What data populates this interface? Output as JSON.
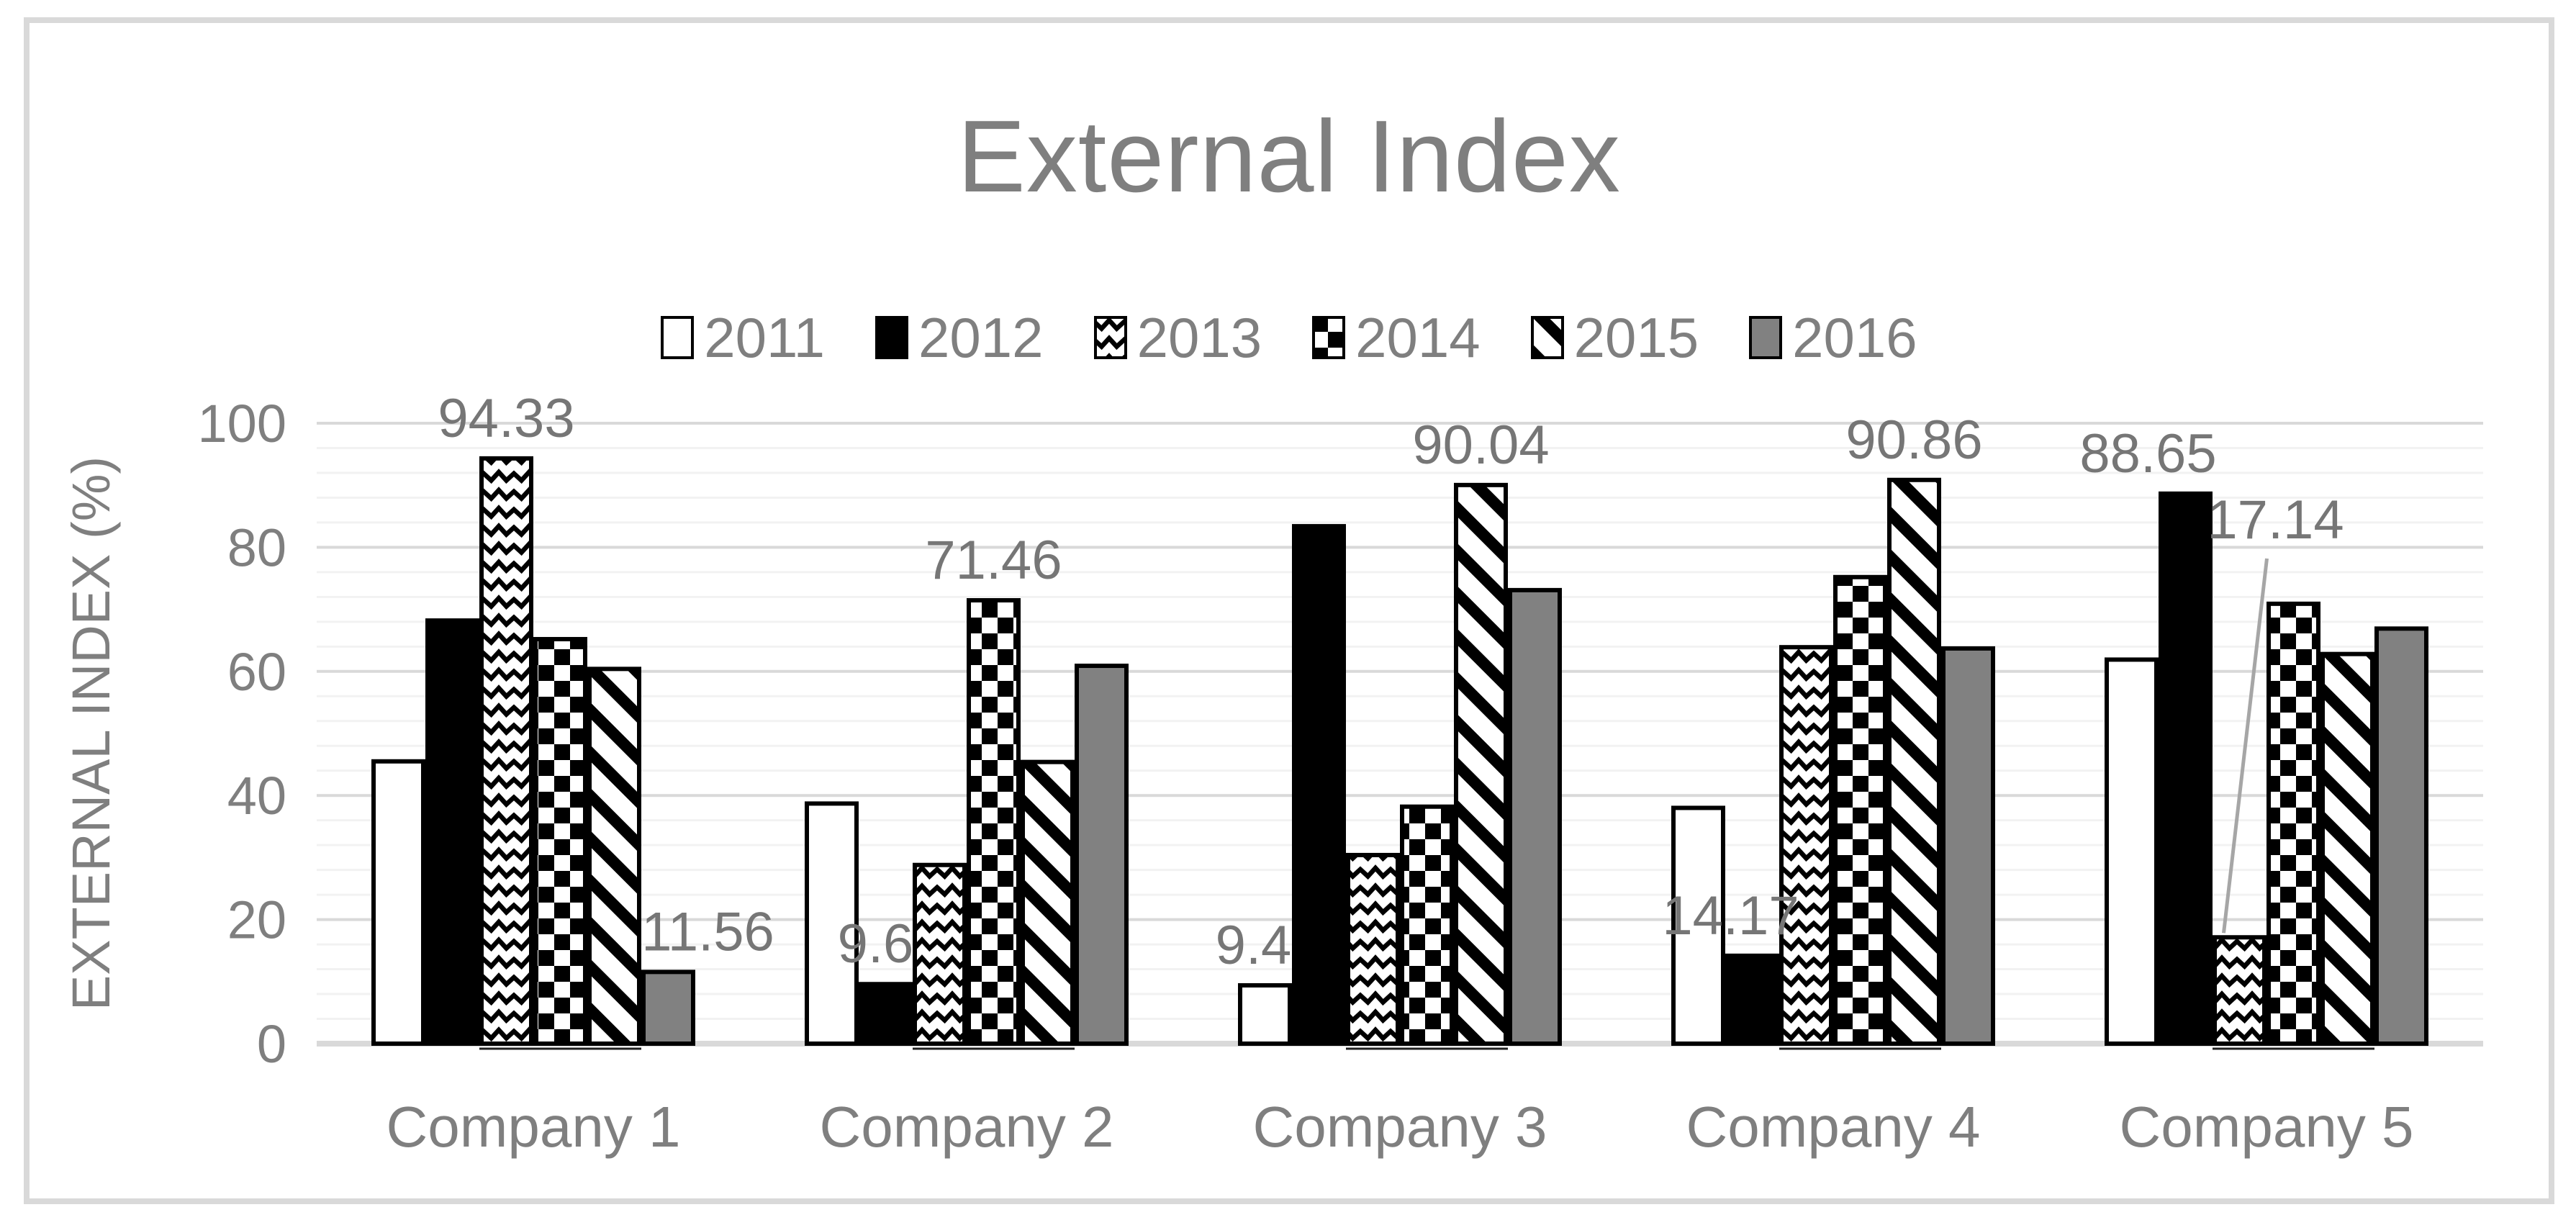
{
  "frame": {
    "border_color": "#d9d9d9"
  },
  "chart_data": {
    "type": "bar",
    "title": "External Index",
    "y_axis_title": "EXTERNAL INDEX (%)",
    "xlabel": "",
    "ylim": [
      0,
      100
    ],
    "yticks": [
      0,
      20,
      40,
      60,
      80,
      100
    ],
    "minor_gridline_step": 4,
    "grid": "on",
    "legend_position": "top",
    "categories": [
      "Company 1",
      "Company 2",
      "Company 3",
      "Company 4",
      "Company 5"
    ],
    "series": [
      {
        "name": "2011",
        "swatch": "white",
        "values": [
          45.5,
          38.7,
          9.4,
          38.0,
          61.9
        ]
      },
      {
        "name": "2012",
        "swatch": "black",
        "values": [
          68.2,
          9.6,
          83.4,
          14.17,
          88.65
        ]
      },
      {
        "name": "2013",
        "swatch": "wave",
        "values": [
          94.33,
          28.8,
          30.4,
          63.9,
          17.14
        ]
      },
      {
        "name": "2014",
        "swatch": "checker",
        "values": [
          65.2,
          71.46,
          38.2,
          75.2,
          70.9
        ]
      },
      {
        "name": "2015",
        "swatch": "diagonal",
        "values": [
          60.4,
          45.4,
          90.04,
          90.86,
          62.8
        ]
      },
      {
        "name": "2016",
        "swatch": "gray",
        "values": [
          11.56,
          60.9,
          73.1,
          63.7,
          66.9
        ]
      }
    ],
    "data_labels": [
      {
        "series": "2013",
        "category": "Company 1",
        "text": "94.33",
        "dx": 0
      },
      {
        "series": "2016",
        "category": "Company 1",
        "text": "11.56",
        "dx": 55
      },
      {
        "series": "2012",
        "category": "Company 2",
        "text": "9.6",
        "dx": -14
      },
      {
        "series": "2014",
        "category": "Company 2",
        "text": "71.46",
        "dx": 0
      },
      {
        "series": "2011",
        "category": "Company 3",
        "text": "9.4",
        "dx": -16
      },
      {
        "series": "2015",
        "category": "Company 3",
        "text": "90.04",
        "dx": 0
      },
      {
        "series": "2012",
        "category": "Company 4",
        "text": "14.17",
        "dx": -30
      },
      {
        "series": "2015",
        "category": "Company 4",
        "text": "90.86",
        "dx": 0
      },
      {
        "series": "2012",
        "category": "Company 5",
        "text": "88.65",
        "dx": -52
      },
      {
        "series": "2013",
        "category": "Company 5",
        "text": "17.14",
        "dx": 50,
        "callout": true
      }
    ],
    "colors": {
      "title_text": "#7f7f7f",
      "axis_text": "#7f7f7f",
      "data_label_text": "#767676",
      "gray_series": "#818181",
      "bar_outline": "#000000",
      "grid_major": "#d9d9d9",
      "grid_minor": "#f2f2f2",
      "baseline": "#d9d9d9",
      "group_underline": "#1f1f1f",
      "callout_line": "#a6a6a6"
    }
  }
}
